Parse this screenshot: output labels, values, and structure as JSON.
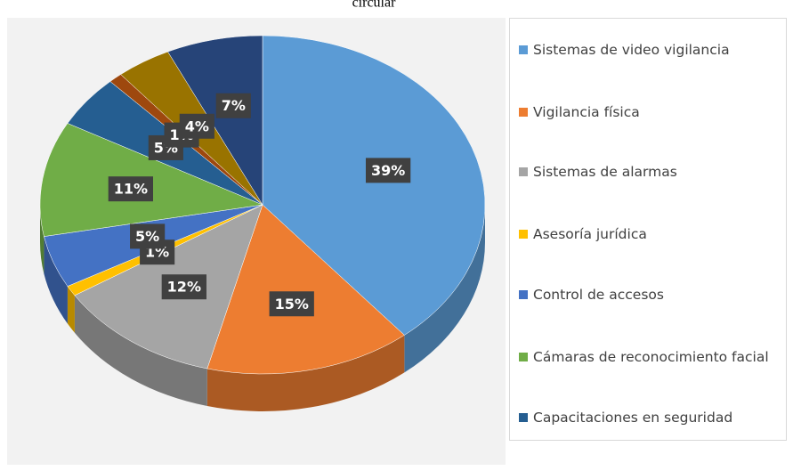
{
  "chart_data": {
    "type": "pie",
    "title": "circular",
    "categories": [
      "Sistemas de video vigilancia",
      "Vigilancia física",
      "Sistemas de alarmas",
      "Asesoría jurídica",
      "Control de accesos",
      "Cámaras de reconocimiento facial",
      "Capacitaciones en seguridad",
      null,
      null,
      null
    ],
    "values": [
      39,
      15,
      12,
      1,
      5,
      11,
      5,
      1,
      4,
      7
    ],
    "colors": [
      "#5b9bd5",
      "#ed7d31",
      "#a5a5a5",
      "#ffc000",
      "#4472c4",
      "#70ad47",
      "#255e91",
      "#9e480e",
      "#997300",
      "#264478"
    ],
    "legend": "right"
  }
}
